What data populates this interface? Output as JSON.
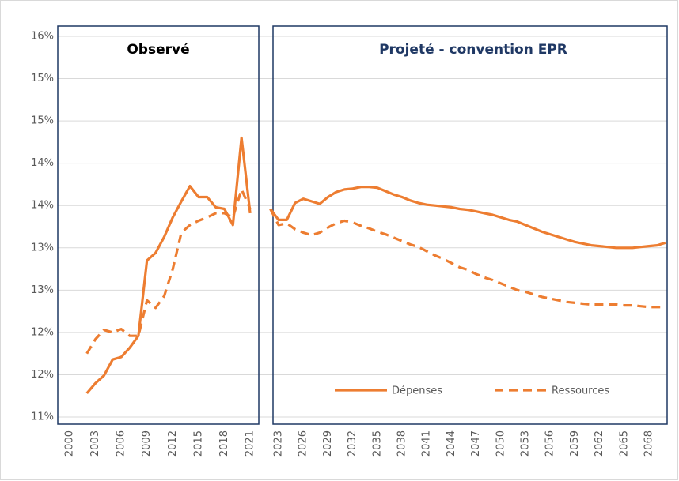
{
  "chart_data": {
    "type": "line",
    "ylim": [
      11.25,
      15.75
    ],
    "yticks": [
      {
        "value": 11.25,
        "label": "11%"
      },
      {
        "value": 11.75,
        "label": "12%"
      },
      {
        "value": 12.25,
        "label": "12%"
      },
      {
        "value": 12.75,
        "label": "13%"
      },
      {
        "value": 13.25,
        "label": "13%"
      },
      {
        "value": 13.75,
        "label": "14%"
      },
      {
        "value": 14.25,
        "label": "14%"
      },
      {
        "value": 14.75,
        "label": "15%"
      },
      {
        "value": 15.25,
        "label": "15%"
      },
      {
        "value": 15.75,
        "label": "16%"
      }
    ],
    "grid": true,
    "legend": "lower right",
    "series": [
      {
        "name": "Dépenses",
        "color": "#ed7d31",
        "dash": "solid"
      },
      {
        "name": "Ressources",
        "color": "#ed7d31",
        "dash": "dashed"
      }
    ],
    "panels": [
      {
        "title": "Observé",
        "categories": [
          "2000",
          null,
          null,
          "2003",
          null,
          null,
          "2006",
          null,
          null,
          "2009",
          null,
          null,
          "2012",
          null,
          null,
          "2015",
          null,
          null,
          "2018",
          null,
          null,
          "2021"
        ],
        "series": [
          {
            "values": [
              null,
              null,
              11.53,
              11.65,
              11.74,
              11.93,
              11.96,
              12.07,
              12.21,
              13.1,
              13.19,
              13.38,
              13.61,
              13.8,
              13.98,
              13.85,
              13.85,
              13.73,
              13.71,
              13.52,
              14.55,
              13.66
            ]
          },
          {
            "values": [
              null,
              null,
              12.0,
              12.17,
              12.28,
              12.25,
              12.29,
              12.21,
              12.21,
              12.63,
              12.54,
              12.68,
              13.0,
              13.43,
              13.52,
              13.57,
              13.61,
              13.66,
              13.66,
              13.61,
              13.94,
              13.71
            ]
          }
        ]
      },
      {
        "title": "Projeté - convention EPR",
        "categories": [
          null,
          "2023",
          null,
          null,
          "2026",
          null,
          null,
          "2029",
          null,
          null,
          "2032",
          null,
          null,
          "2035",
          null,
          null,
          "2038",
          null,
          null,
          "2041",
          null,
          null,
          "2044",
          null,
          null,
          "2047",
          null,
          null,
          "2050",
          null,
          null,
          "2053",
          null,
          null,
          "2056",
          null,
          null,
          "2059",
          null,
          null,
          "2062",
          null,
          null,
          "2065",
          null,
          null,
          "2068",
          null,
          null
        ],
        "series": [
          {
            "values": [
              13.71,
              13.58,
              13.58,
              13.78,
              13.83,
              13.8,
              13.77,
              13.85,
              13.91,
              13.94,
              13.95,
              13.97,
              13.97,
              13.96,
              13.92,
              13.88,
              13.85,
              13.81,
              13.78,
              13.76,
              13.75,
              13.74,
              13.73,
              13.71,
              13.7,
              13.68,
              13.66,
              13.64,
              13.61,
              13.58,
              13.56,
              13.52,
              13.48,
              13.44,
              13.41,
              13.38,
              13.35,
              13.32,
              13.3,
              13.28,
              13.27,
              13.26,
              13.25,
              13.25,
              13.25,
              13.26,
              13.27,
              13.28,
              13.31
            ]
          },
          {
            "values": [
              13.71,
              13.52,
              13.54,
              13.47,
              13.43,
              13.4,
              13.43,
              13.49,
              13.54,
              13.57,
              13.55,
              13.51,
              13.48,
              13.44,
              13.41,
              13.37,
              13.33,
              13.29,
              13.26,
              13.21,
              13.16,
              13.12,
              13.07,
              13.02,
              12.99,
              12.94,
              12.9,
              12.87,
              12.83,
              12.79,
              12.75,
              12.73,
              12.7,
              12.67,
              12.65,
              12.63,
              12.61,
              12.6,
              12.59,
              12.58,
              12.58,
              12.58,
              12.58,
              12.57,
              12.57,
              12.56,
              12.55,
              12.55,
              12.55
            ]
          }
        ]
      }
    ]
  }
}
